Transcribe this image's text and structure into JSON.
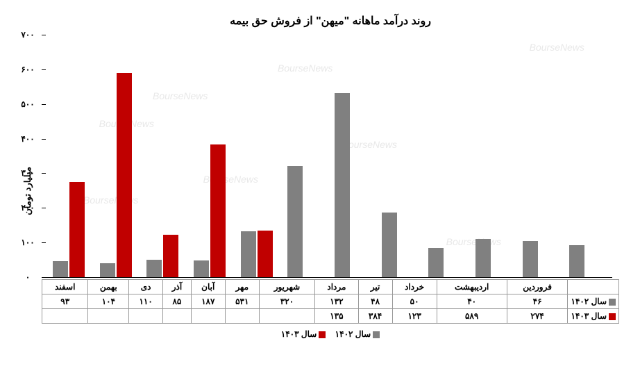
{
  "chart": {
    "type": "bar",
    "title": "روند درآمد ماهانه \"میهن\" از فروش حق بیمه",
    "y_label": "میلیارد تومان",
    "y_max": 700,
    "y_ticks": [
      0,
      100,
      200,
      300,
      400,
      500,
      600,
      700
    ],
    "y_tick_labels": [
      "۰",
      "۱۰۰",
      "۲۰۰",
      "۳۰۰",
      "۴۰۰",
      "۵۰۰",
      "۶۰۰",
      "۷۰۰"
    ],
    "categories": [
      "فروردین",
      "اردیبهشت",
      "خرداد",
      "تیر",
      "مرداد",
      "شهریور",
      "مهر",
      "آبان",
      "آذر",
      "دی",
      "بهمن",
      "اسفند"
    ],
    "series": [
      {
        "name": "سال ۱۴۰۲",
        "color": "#808080",
        "values": [
          46,
          40,
          50,
          48,
          132,
          320,
          531,
          187,
          85,
          110,
          104,
          93
        ],
        "value_labels": [
          "۴۶",
          "۴۰",
          "۵۰",
          "۴۸",
          "۱۳۲",
          "۳۲۰",
          "۵۳۱",
          "۱۸۷",
          "۸۵",
          "۱۱۰",
          "۱۰۴",
          "۹۳"
        ]
      },
      {
        "name": "سال ۱۴۰۳",
        "color": "#c00000",
        "values": [
          274,
          589,
          123,
          384,
          135,
          null,
          null,
          null,
          null,
          null,
          null,
          null
        ],
        "value_labels": [
          "۲۷۴",
          "۵۸۹",
          "۱۲۳",
          "۳۸۴",
          "۱۳۵",
          "",
          "",
          "",
          "",
          "",
          "",
          ""
        ]
      }
    ],
    "legend": {
      "label_1402": "سال ۱۴۰۲",
      "label_1403": "سال ۱۴۰۳"
    },
    "watermark": "BourseNews",
    "background_color": "#ffffff",
    "title_fontsize": 16,
    "label_fontsize": 13,
    "tick_fontsize": 12
  }
}
